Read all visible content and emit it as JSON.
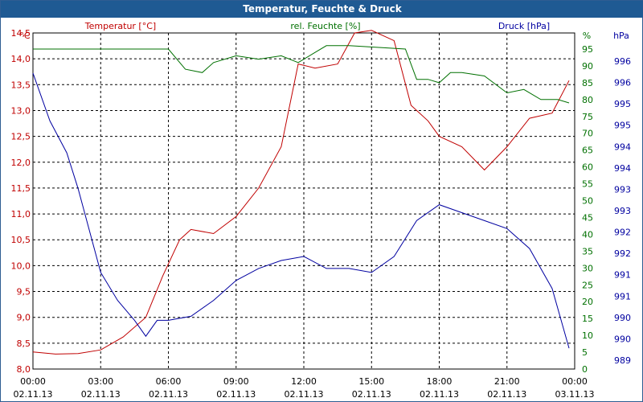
{
  "title": "Temperatur, Feuchte & Druck",
  "chart_data": {
    "type": "line",
    "title": "Temperatur, Feuchte & Druck",
    "legend": {
      "temperature": "Temperatur [°C]",
      "humidity": "rel. Feuchte [%]",
      "pressure": "Druck [hPa]"
    },
    "axis_units": {
      "left": "°C",
      "right1": "%",
      "right2": "hPa"
    },
    "colors": {
      "temperature": "#c00000",
      "humidity": "#007000",
      "pressure": "#0000a0"
    },
    "grid": true,
    "x_ticks": [
      {
        "time": "00:00",
        "date": "02.11.13"
      },
      {
        "time": "03:00",
        "date": "02.11.13"
      },
      {
        "time": "06:00",
        "date": "02.11.13"
      },
      {
        "time": "09:00",
        "date": "02.11.13"
      },
      {
        "time": "12:00",
        "date": "02.11.13"
      },
      {
        "time": "15:00",
        "date": "02.11.13"
      },
      {
        "time": "18:00",
        "date": "02.11.13"
      },
      {
        "time": "21:00",
        "date": "02.11.13"
      },
      {
        "time": "00:00",
        "date": "03.11.13"
      }
    ],
    "xlim": [
      "02.11.13 00:00",
      "03.11.13 00:00"
    ],
    "temperature_axis": {
      "ylim": [
        8.0,
        14.5
      ],
      "ticks": [
        "14,5",
        "14,0",
        "13,5",
        "13,0",
        "12,5",
        "12,0",
        "11,5",
        "11,0",
        "10,5",
        "10,0",
        "9,5",
        "9,0",
        "8,5",
        "8,0"
      ]
    },
    "humidity_axis": {
      "ylim": [
        0,
        95
      ],
      "ticks": [
        "95",
        "90",
        "85",
        "80",
        "75",
        "70",
        "65",
        "60",
        "55",
        "50",
        "45",
        "40",
        "35",
        "30",
        "25",
        "20",
        "15",
        "10",
        "5",
        "0"
      ]
    },
    "pressure_axis": {
      "ticks": [
        "996",
        "996",
        "995",
        "995",
        "994",
        "994",
        "993",
        "993",
        "992",
        "992",
        "991",
        "991",
        "990",
        "990",
        "989"
      ]
    },
    "series": [
      {
        "name": "Temperatur [°C]",
        "axis": "temperature",
        "x": [
          "02.11.13 00:00",
          "02.11.13 01:00",
          "02.11.13 02:00",
          "02.11.13 03:00",
          "02.11.13 04:00",
          "02.11.13 05:00",
          "02.11.13 05:45",
          "02.11.13 06:30",
          "02.11.13 07:00",
          "02.11.13 08:00",
          "02.11.13 09:00",
          "02.11.13 10:00",
          "02.11.13 11:00",
          "02.11.13 11:45",
          "02.11.13 12:30",
          "02.11.13 13:30",
          "02.11.13 14:15",
          "02.11.13 15:00",
          "02.11.13 16:00",
          "02.11.13 16:45",
          "02.11.13 17:30",
          "02.11.13 18:00",
          "02.11.13 19:00",
          "02.11.13 20:00",
          "02.11.13 21:00",
          "02.11.13 22:00",
          "02.11.13 23:00",
          "02.11.13 23:45"
        ],
        "y": [
          8.33,
          8.29,
          8.3,
          8.37,
          8.62,
          9.0,
          9.8,
          10.5,
          10.7,
          10.62,
          10.95,
          11.5,
          12.3,
          13.9,
          13.82,
          13.9,
          14.5,
          14.55,
          14.35,
          13.1,
          12.8,
          12.5,
          12.3,
          11.85,
          12.3,
          12.85,
          12.95,
          13.58
        ]
      },
      {
        "name": "rel. Feuchte [%]",
        "axis": "humidity",
        "x": [
          "02.11.13 00:00",
          "02.11.13 06:00",
          "02.11.13 06:45",
          "02.11.13 07:30",
          "02.11.13 08:00",
          "02.11.13 09:00",
          "02.11.13 10:00",
          "02.11.13 11:00",
          "02.11.13 11:45",
          "02.11.13 12:30",
          "02.11.13 13:00",
          "02.11.13 14:00",
          "02.11.13 16:30",
          "02.11.13 17:00",
          "02.11.13 17:30",
          "02.11.13 18:00",
          "02.11.13 18:30",
          "02.11.13 19:00",
          "02.11.13 20:00",
          "02.11.13 21:00",
          "02.11.13 21:45",
          "02.11.13 22:30",
          "02.11.13 23:15",
          "02.11.13 23:45"
        ],
        "y": [
          95,
          95,
          89,
          88,
          91,
          93,
          92,
          93,
          91,
          94,
          96,
          96,
          95,
          86,
          86,
          85,
          88,
          88,
          87,
          82,
          83,
          80,
          80,
          79
        ]
      },
      {
        "name": "Druck [hPa]",
        "axis": "pressure",
        "x": [
          "02.11.13 00:00",
          "02.11.13 00:45",
          "02.11.13 01:30",
          "02.11.13 02:00",
          "02.11.13 03:00",
          "02.11.13 03:45",
          "02.11.13 04:30",
          "02.11.13 05:00",
          "02.11.13 05:30",
          "02.11.13 06:00",
          "02.11.13 07:00",
          "02.11.13 08:00",
          "02.11.13 09:00",
          "02.11.13 10:00",
          "02.11.13 11:00",
          "02.11.13 12:00",
          "02.11.13 13:00",
          "02.11.13 14:00",
          "02.11.13 15:00",
          "02.11.13 16:00",
          "02.11.13 17:00",
          "02.11.13 18:00",
          "02.11.13 19:00",
          "02.11.13 20:00",
          "02.11.13 21:00",
          "02.11.13 22:00",
          "02.11.13 23:00",
          "02.11.13 23:45"
        ],
        "y": [
          996.2,
          995.0,
          994.2,
          993.3,
          991.2,
          990.5,
          990.0,
          989.6,
          990.0,
          990.0,
          990.1,
          990.5,
          991.0,
          991.3,
          991.5,
          991.6,
          991.3,
          991.3,
          991.2,
          991.6,
          992.5,
          992.9,
          992.7,
          992.5,
          992.3,
          991.8,
          990.8,
          989.3
        ]
      }
    ]
  }
}
